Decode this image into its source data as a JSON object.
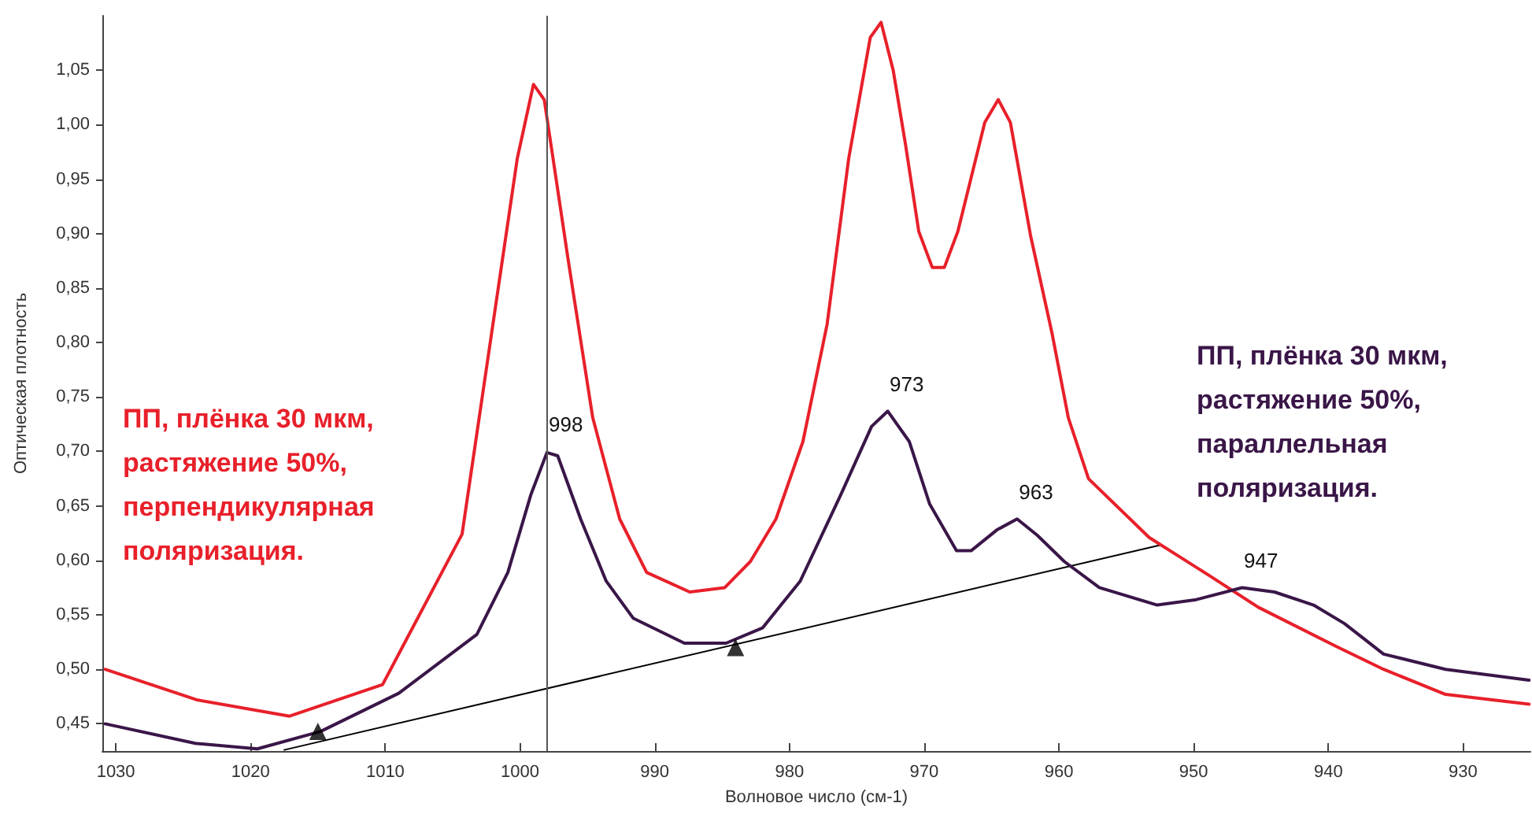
{
  "chart_data": {
    "type": "line",
    "xlabel": "Волновое число (см-1)",
    "ylabel": "Оптическая плотность",
    "xlim": [
      1031,
      925
    ],
    "ylim": [
      0.425,
      1.1
    ],
    "xticks": [
      1030,
      1020,
      1010,
      1000,
      990,
      980,
      970,
      960,
      950,
      940,
      930
    ],
    "yticks": [
      {
        "value": 0.45,
        "label": "0,45"
      },
      {
        "value": 0.5,
        "label": "0,50"
      },
      {
        "value": 0.55,
        "label": "0,55"
      },
      {
        "value": 0.6,
        "label": "0,60"
      },
      {
        "value": 0.65,
        "label": "0,65"
      },
      {
        "value": 0.7,
        "label": "0,70"
      },
      {
        "value": 0.75,
        "label": "0,75"
      },
      {
        "value": 0.8,
        "label": "0,80"
      },
      {
        "value": 0.85,
        "label": "0,85"
      },
      {
        "value": 0.9,
        "label": "0,90"
      },
      {
        "value": 0.95,
        "label": "0,95"
      },
      {
        "value": 1.0,
        "label": "1,00"
      },
      {
        "value": 1.05,
        "label": "1,05"
      }
    ],
    "grid": false,
    "legend": false,
    "series": [
      {
        "name": "ПП, плёнка 30 мкм, растяжение 50%, перпендикулярная поляризация.",
        "color": "#e8202a",
        "x": [
          1030.8,
          1024,
          1017.1,
          1010.2,
          1004.3,
          1000.2,
          999.0,
          998.2,
          996.4,
          994.6,
          992.6,
          990.6,
          987.4,
          984.8,
          982.9,
          981.0,
          979.0,
          977.2,
          975.6,
          974.0,
          973.2,
          972.3,
          971.4,
          970.4,
          969.4,
          968.5,
          967.5,
          965.5,
          964.5,
          963.6,
          962.1,
          960.5,
          959.3,
          957.8,
          953.3,
          948.7,
          945.2,
          939.4,
          935.9,
          931.3,
          925.1
        ],
        "values": [
          0.5,
          0.472,
          0.457,
          0.486,
          0.624,
          0.969,
          1.037,
          1.023,
          0.874,
          0.731,
          0.638,
          0.589,
          0.571,
          0.575,
          0.599,
          0.638,
          0.709,
          0.817,
          0.969,
          1.08,
          1.094,
          1.05,
          0.983,
          0.902,
          0.869,
          0.869,
          0.902,
          1.002,
          1.023,
          1.002,
          0.898,
          0.808,
          0.731,
          0.675,
          0.621,
          0.585,
          0.557,
          0.521,
          0.5,
          0.477,
          0.468
        ]
      },
      {
        "name": "ПП, плёнка 30 мкм, растяжение 50%, параллельная поляризация.",
        "color": "#3a1648",
        "x": [
          1030.8,
          1024.1,
          1019.5,
          1014.8,
          1009.0,
          1003.2,
          1000.9,
          999.2,
          998.0,
          997.2,
          995.5,
          993.6,
          991.6,
          987.8,
          984.7,
          982.0,
          979.2,
          976.2,
          973.9,
          972.7,
          971.1,
          969.6,
          967.6,
          966.5,
          964.6,
          963.1,
          961.6,
          959.6,
          957.0,
          952.7,
          949.8,
          946.4,
          944.0,
          941.1,
          938.8,
          935.9,
          931.3,
          925.1
        ],
        "values": [
          0.45,
          0.432,
          0.427,
          0.443,
          0.478,
          0.532,
          0.589,
          0.66,
          0.699,
          0.696,
          0.638,
          0.581,
          0.547,
          0.524,
          0.524,
          0.538,
          0.581,
          0.66,
          0.723,
          0.737,
          0.709,
          0.652,
          0.609,
          0.609,
          0.628,
          0.638,
          0.623,
          0.599,
          0.575,
          0.559,
          0.564,
          0.575,
          0.571,
          0.559,
          0.542,
          0.514,
          0.5,
          0.49
        ]
      },
      {
        "type": "line",
        "color": "#000000",
        "x": [
          1017.5,
          952.5
        ],
        "values": [
          0.426,
          0.614
        ]
      },
      {
        "type": "scatter",
        "marker": "triangle",
        "color": "#000000",
        "x": [
          1015,
          984
        ],
        "values": [
          0.443,
          0.52
        ]
      }
    ],
    "ref_lines": [
      {
        "axis": "x",
        "value": 998,
        "color": "#555555"
      }
    ],
    "annotations": [
      {
        "text": "998",
        "x": 998,
        "y": 0.7
      },
      {
        "text": "973",
        "x": 972.7,
        "y": 0.737
      },
      {
        "text": "963",
        "x": 963.1,
        "y": 0.638
      },
      {
        "text": "947",
        "x": 946.4,
        "y": 0.575
      }
    ]
  }
}
